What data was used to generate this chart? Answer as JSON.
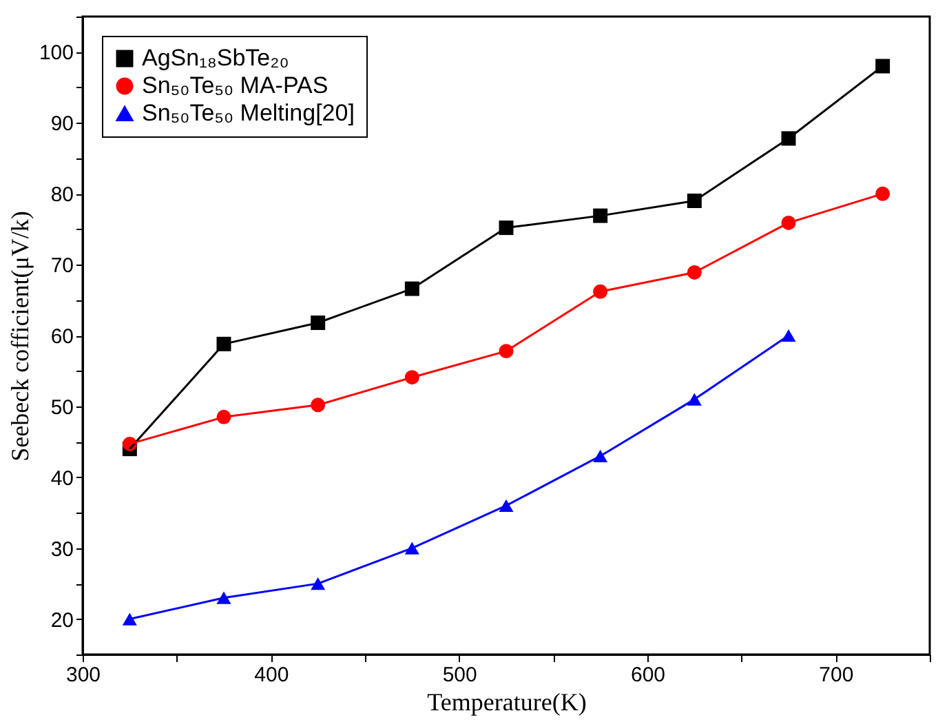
{
  "chart_data": {
    "type": "line",
    "xlabel": "Temperature(K)",
    "ylabel": "Seebeck cofficient(μV/k)",
    "x": [
      325,
      375,
      425,
      475,
      525,
      575,
      625,
      675,
      725
    ],
    "series": [
      {
        "name": "AgSn₁₈SbTe₂₀",
        "color": "#000000",
        "marker": "square",
        "values": [
          44,
          58.8,
          61.8,
          66.6,
          75.2,
          76.9,
          79,
          87.8,
          98
        ]
      },
      {
        "name": "Sn₅₀Te₅₀ MA-PAS",
        "color": "#ff0000",
        "marker": "circle",
        "values": [
          44.7,
          48.5,
          50.2,
          54.1,
          57.8,
          66.2,
          68.9,
          75.9,
          80
        ]
      },
      {
        "name": "Sn₅₀Te₅₀ Melting[20]",
        "color": "#0000ff",
        "marker": "triangle",
        "x": [
          325,
          375,
          425,
          475,
          525,
          575,
          625,
          675
        ],
        "values": [
          20,
          23,
          25,
          30,
          36,
          43,
          51,
          60
        ]
      }
    ],
    "xlim": [
      300,
      750
    ],
    "xticks": [
      300,
      {
        "value": 350,
        "label": null
      },
      400,
      {
        "value": 450,
        "label": null
      },
      500,
      {
        "value": 550,
        "label": null
      },
      600,
      {
        "value": 650,
        "label": null
      },
      700,
      {
        "value": 750,
        "label": null
      }
    ],
    "ylim": [
      15,
      105
    ],
    "yticks": [
      {
        "value": 15,
        "label": null
      },
      20,
      {
        "value": 25,
        "label": null
      },
      30,
      {
        "value": 35,
        "label": null
      },
      40,
      {
        "value": 45,
        "label": null
      },
      50,
      {
        "value": 55,
        "label": null
      },
      60,
      {
        "value": 65,
        "label": null
      },
      70,
      {
        "value": 75,
        "label": null
      },
      80,
      {
        "value": 85,
        "label": null
      },
      90,
      {
        "value": 95,
        "label": null
      },
      100,
      {
        "value": 105,
        "label": null
      }
    ],
    "grid": false,
    "legend": "top left",
    "line_style": "solid"
  }
}
